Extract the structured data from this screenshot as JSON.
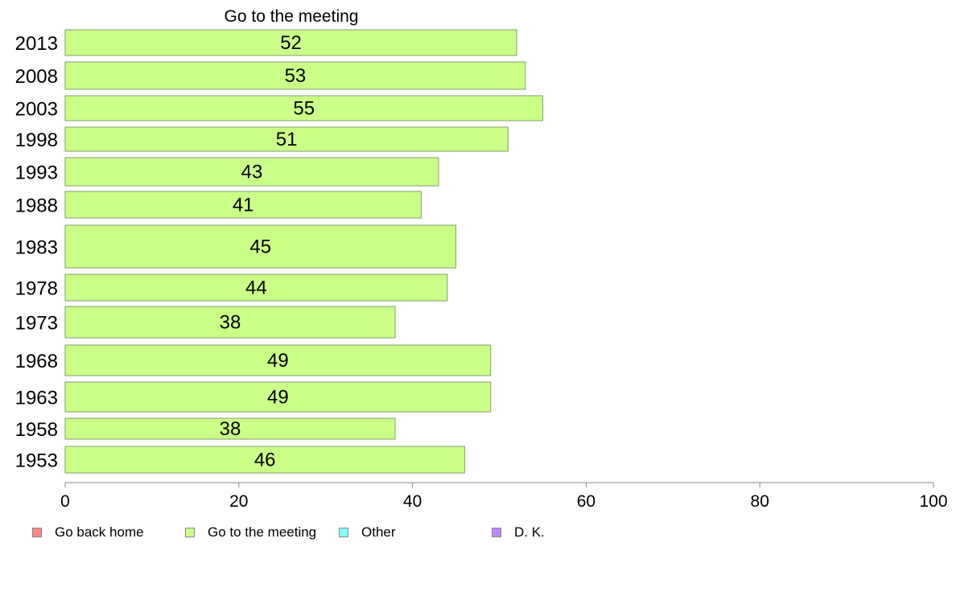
{
  "chart_data": {
    "type": "bar",
    "orientation": "horizontal",
    "title": "Go to the meeting",
    "categories": [
      "2013",
      "2008",
      "2003",
      "1998",
      "1993",
      "1988",
      "1983",
      "1978",
      "1973",
      "1968",
      "1963",
      "1958",
      "1953"
    ],
    "series": [
      {
        "name": "Go to the meeting",
        "values": [
          52,
          53,
          55,
          51,
          43,
          41,
          45,
          44,
          38,
          49,
          49,
          38,
          46
        ],
        "color": "#ccff88"
      }
    ],
    "xlim": [
      0,
      100
    ],
    "xticks": [
      0,
      20,
      40,
      60,
      80,
      100
    ],
    "grid": false,
    "legend_position": "bottom-left",
    "legend": [
      {
        "label": "Go back home",
        "color": "#ff8888"
      },
      {
        "label": "Go to the meeting",
        "color": "#ccff88"
      },
      {
        "label": "Other",
        "color": "#88ffff"
      },
      {
        "label": "D. K.",
        "color": "#bb88ff"
      }
    ]
  }
}
